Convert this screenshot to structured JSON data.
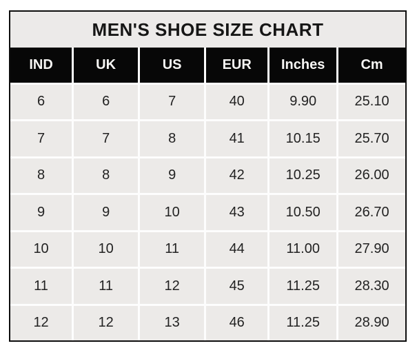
{
  "chart_data": {
    "type": "table",
    "title": "MEN'S SHOE SIZE CHART",
    "columns": [
      "IND",
      "UK",
      "US",
      "EUR",
      "Inches",
      "Cm"
    ],
    "rows": [
      [
        "6",
        "6",
        "7",
        "40",
        "9.90",
        "25.10"
      ],
      [
        "7",
        "7",
        "8",
        "41",
        "10.15",
        "25.70"
      ],
      [
        "8",
        "8",
        "9",
        "42",
        "10.25",
        "26.00"
      ],
      [
        "9",
        "9",
        "10",
        "43",
        "10.50",
        "26.70"
      ],
      [
        "10",
        "10",
        "11",
        "44",
        "11.00",
        "27.90"
      ],
      [
        "11",
        "11",
        "12",
        "45",
        "11.25",
        "28.30"
      ],
      [
        "12",
        "12",
        "13",
        "46",
        "11.25",
        "28.90"
      ]
    ],
    "colors": {
      "page_background": "#ffffff",
      "title_background": "#eceae9",
      "title_text": "#161616",
      "header_background": "#070707",
      "header_text": "#f7f6f4",
      "cell_background": "#eceae8",
      "cell_text": "#222222",
      "gridline": "#fdfdfd",
      "outer_border": "#0d0d0d"
    }
  }
}
